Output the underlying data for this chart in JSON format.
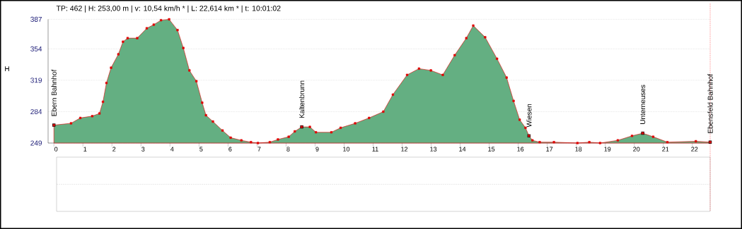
{
  "chart_data": {
    "type": "area",
    "title": "TP: 462 | H: 253,00 m | v: 10,54 km/h * | L: 22,614 km * | t: 10:01:02",
    "ylabel": "H",
    "x": [
      0,
      0.59,
      0.91,
      1.32,
      1.57,
      1.69,
      1.81,
      1.97,
      2.22,
      2.38,
      2.54,
      2.87,
      3.2,
      3.44,
      3.69,
      3.97,
      4.26,
      4.46,
      4.67,
      4.91,
      5.11,
      5.24,
      5.48,
      5.81,
      6.09,
      6.46,
      6.79,
      7.03,
      7.44,
      7.72,
      8.09,
      8.3,
      8.54,
      8.82,
      9.03,
      9.56,
      9.88,
      10.38,
      10.86,
      11.35,
      11.68,
      12.17,
      12.58,
      12.99,
      13.4,
      13.81,
      14.21,
      14.45,
      14.86,
      15.27,
      15.6,
      15.84,
      16.05,
      16.25,
      16.37,
      16.49,
      16.74,
      17.23,
      18.04,
      18.45,
      18.82,
      19.43,
      19.92,
      20.29,
      20.65,
      21.14,
      22.12,
      22.614
    ],
    "series": [
      {
        "color": "#e00000",
        "values": [
          269,
          271,
          277,
          279,
          282,
          295,
          316,
          333,
          348,
          362,
          366,
          366,
          377,
          381,
          386,
          387,
          375,
          355,
          330,
          318,
          294,
          280,
          273,
          263,
          255,
          252,
          250,
          249,
          250,
          253,
          256,
          262,
          267,
          267,
          261,
          261,
          266,
          271,
          277,
          284,
          303,
          325,
          332,
          330,
          325,
          347,
          366,
          380,
          367,
          343,
          322,
          296,
          275,
          266,
          257,
          252,
          250,
          250,
          249,
          250,
          249,
          252,
          257,
          260,
          256,
          250,
          251,
          250
        ]
      }
    ],
    "xlim": [
      -0.2,
      22.614
    ],
    "ylim": [
      249,
      387
    ],
    "xticks": [
      0,
      1,
      2,
      3,
      4,
      5,
      6,
      7,
      8,
      9,
      10,
      11,
      12,
      13,
      14,
      15,
      16,
      17,
      18,
      19,
      20,
      21,
      22
    ],
    "yticks": [
      249,
      284,
      319,
      354,
      387
    ],
    "grid": "y",
    "marker": "square",
    "ref_lines": [
      {
        "axis": "x",
        "value": 22.614,
        "color": "#ff0000",
        "line_style": "dotted"
      }
    ],
    "annotations": [
      {
        "text": "Ebern Bahnhof",
        "x": 0,
        "y": 269
      },
      {
        "text": "Kaltenbrunn",
        "x": 8.54,
        "y": 267
      },
      {
        "text": "Wiesen",
        "x": 16.37,
        "y": 257
      },
      {
        "text": "Unterneuses",
        "x": 20.29,
        "y": 260
      },
      {
        "text": "Ebensfeld Bahnhof",
        "x": 22.614,
        "y": 250
      }
    ]
  }
}
